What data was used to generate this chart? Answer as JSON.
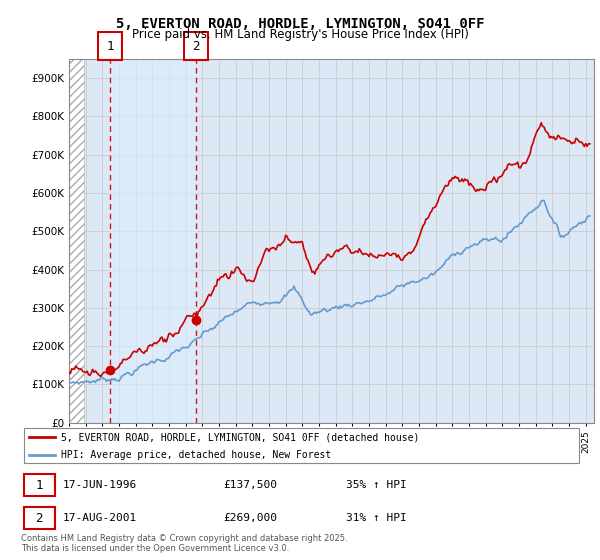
{
  "title": "5, EVERTON ROAD, HORDLE, LYMINGTON, SO41 0FF",
  "subtitle": "Price paid vs. HM Land Registry's House Price Index (HPI)",
  "ylim": [
    0,
    950000
  ],
  "xlim_start": 1994.0,
  "xlim_end": 2025.5,
  "yticks": [
    0,
    100000,
    200000,
    300000,
    400000,
    500000,
    600000,
    700000,
    800000,
    900000
  ],
  "ytick_labels": [
    "£0",
    "£100K",
    "£200K",
    "£300K",
    "£400K",
    "£500K",
    "£600K",
    "£700K",
    "£800K",
    "£900K"
  ],
  "purchase1_date": 1996.46,
  "purchase1_price": 137500,
  "purchase2_date": 2001.63,
  "purchase2_price": 269000,
  "legend_line1": "5, EVERTON ROAD, HORDLE, LYMINGTON, SO41 0FF (detached house)",
  "legend_line2": "HPI: Average price, detached house, New Forest",
  "annotation1_date": "17-JUN-1996",
  "annotation1_price": "£137,500",
  "annotation1_hpi": "35% ↑ HPI",
  "annotation2_date": "17-AUG-2001",
  "annotation2_price": "£269,000",
  "annotation2_hpi": "31% ↑ HPI",
  "footer": "Contains HM Land Registry data © Crown copyright and database right 2025.\nThis data is licensed under the Open Government Licence v3.0.",
  "line_color_red": "#cc0000",
  "line_color_blue": "#6699cc",
  "grid_color": "#cccccc",
  "plot_bg_color": "#dce8f5",
  "shade_color": "#dce8f8",
  "background_color": "#ffffff"
}
